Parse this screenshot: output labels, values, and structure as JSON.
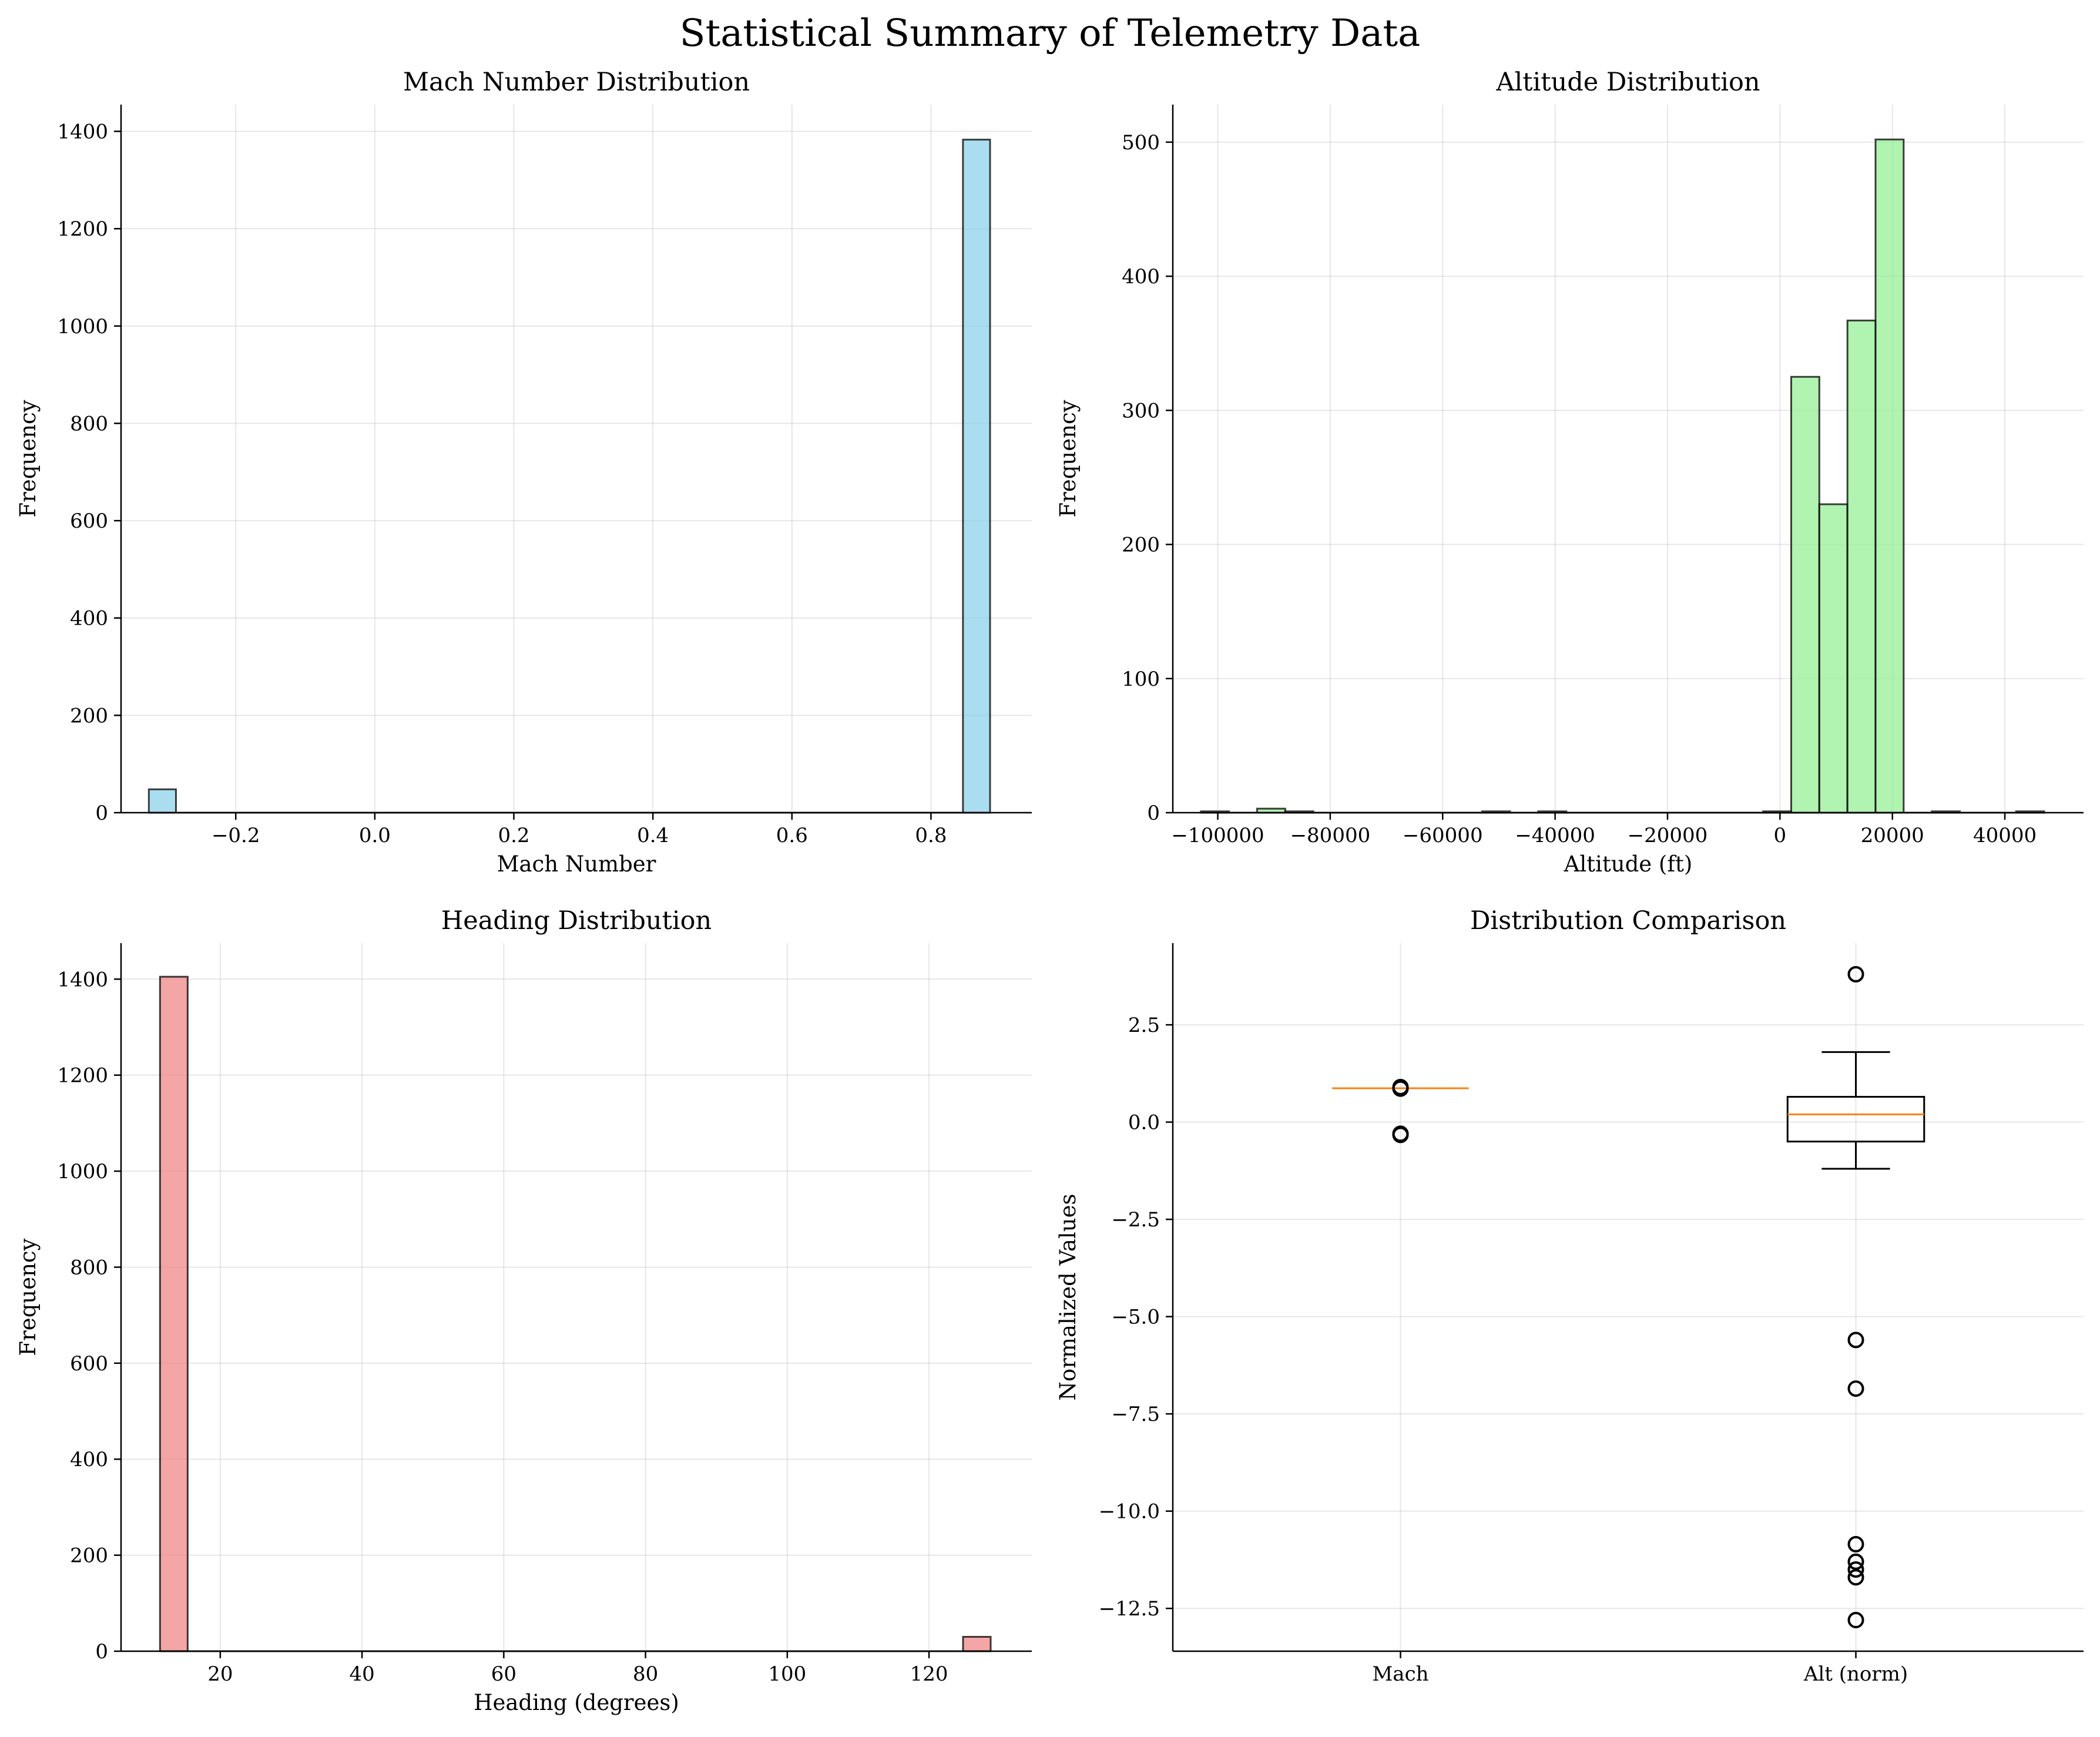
{
  "suptitle": "Statistical Summary of Telemetry Data",
  "chart_data": [
    {
      "type": "bar",
      "title": "Mach Number Distribution",
      "xlabel": "Mach Number",
      "ylabel": "Frequency",
      "color": "#87ceeb",
      "xlim": [
        -0.365,
        0.945
      ],
      "ylim": [
        0,
        1455
      ],
      "xticks": [
        -0.2,
        0.0,
        0.2,
        0.4,
        0.6,
        0.8
      ],
      "xtick_labels": [
        "−0.2",
        "0.0",
        "0.2",
        "0.4",
        "0.6",
        "0.8"
      ],
      "yticks": [
        0,
        200,
        400,
        600,
        800,
        1000,
        1200,
        1400
      ],
      "ytick_labels": [
        "0",
        "200",
        "400",
        "600",
        "800",
        "1000",
        "1200",
        "1400"
      ],
      "bins": [
        {
          "x0": -0.325,
          "x1": -0.286,
          "count": 48
        },
        {
          "x0": 0.846,
          "x1": 0.885,
          "count": 1383
        }
      ],
      "range": [
        -0.325,
        0.885
      ]
    },
    {
      "type": "bar",
      "title": "Altitude Distribution",
      "xlabel": "Altitude (ft)",
      "ylabel": "Frequency",
      "color": "#90ee90",
      "xlim": [
        -108000,
        54000
      ],
      "ylim": [
        0,
        528
      ],
      "xticks": [
        -100000,
        -80000,
        -60000,
        -40000,
        -20000,
        0,
        20000,
        40000
      ],
      "xtick_labels": [
        "−100000",
        "−80000",
        "−60000",
        "−40000",
        "−20000",
        "0",
        "20000",
        "40000"
      ],
      "yticks": [
        0,
        100,
        200,
        300,
        400,
        500
      ],
      "ytick_labels": [
        "0",
        "100",
        "200",
        "300",
        "400",
        "500"
      ],
      "bins": [
        {
          "x0": -103000,
          "x1": -98000,
          "count": 1
        },
        {
          "x0": -93000,
          "x1": -88000,
          "count": 3
        },
        {
          "x0": -88000,
          "x1": -83000,
          "count": 1
        },
        {
          "x0": -53000,
          "x1": -48000,
          "count": 1
        },
        {
          "x0": -43000,
          "x1": -38000,
          "count": 1
        },
        {
          "x0": -3000,
          "x1": 2000,
          "count": 1
        },
        {
          "x0": 2000,
          "x1": 7000,
          "count": 325
        },
        {
          "x0": 7000,
          "x1": 12000,
          "count": 230
        },
        {
          "x0": 12000,
          "x1": 17000,
          "count": 367
        },
        {
          "x0": 17000,
          "x1": 22000,
          "count": 502
        },
        {
          "x0": 27000,
          "x1": 32000,
          "count": 1
        },
        {
          "x0": 42000,
          "x1": 47000,
          "count": 1
        }
      ],
      "range": [
        -103000,
        47000
      ]
    },
    {
      "type": "bar",
      "title": "Heading Distribution",
      "xlabel": "Heading (degrees)",
      "ylabel": "Frequency",
      "color": "#f08080",
      "xlim": [
        6,
        134.5
      ],
      "ylim": [
        0,
        1475
      ],
      "xticks": [
        20,
        40,
        60,
        80,
        100,
        120
      ],
      "xtick_labels": [
        "20",
        "40",
        "60",
        "80",
        "100",
        "120"
      ],
      "yticks": [
        0,
        200,
        400,
        600,
        800,
        1000,
        1200,
        1400
      ],
      "ytick_labels": [
        "0",
        "200",
        "400",
        "600",
        "800",
        "1000",
        "1200",
        "1400"
      ],
      "bins": [
        {
          "x0": 11.5,
          "x1": 15.4,
          "count": 1405
        },
        {
          "x0": 124.8,
          "x1": 128.7,
          "count": 30
        }
      ],
      "range": [
        11.5,
        128.7
      ]
    },
    {
      "type": "box",
      "title": "Distribution Comparison",
      "xlabel": "",
      "ylabel": "Normalized Values",
      "ylim": [
        -13.6,
        4.6
      ],
      "yticks": [
        2.5,
        0.0,
        -2.5,
        -5.0,
        -7.5,
        -10.0,
        -12.5
      ],
      "ytick_labels": [
        "2.5",
        "0.0",
        "−2.5",
        "−5.0",
        "−7.5",
        "−10.0",
        "−12.5"
      ],
      "median_color": "#ff7f0e",
      "boxes": [
        {
          "label": "Mach",
          "q1": 0.87,
          "median": 0.87,
          "q3": 0.87,
          "whisker_low": 0.87,
          "whisker_high": 0.87,
          "outliers": [
            0.9,
            0.86,
            -0.33,
            -0.3
          ]
        },
        {
          "label": "Alt (norm)",
          "q1": -0.5,
          "median": 0.2,
          "q3": 0.65,
          "whisker_low": -1.2,
          "whisker_high": 1.8,
          "outliers": [
            3.8,
            -5.6,
            -6.85,
            -10.85,
            -11.3,
            -11.5,
            -11.7,
            -12.8
          ]
        }
      ]
    }
  ]
}
